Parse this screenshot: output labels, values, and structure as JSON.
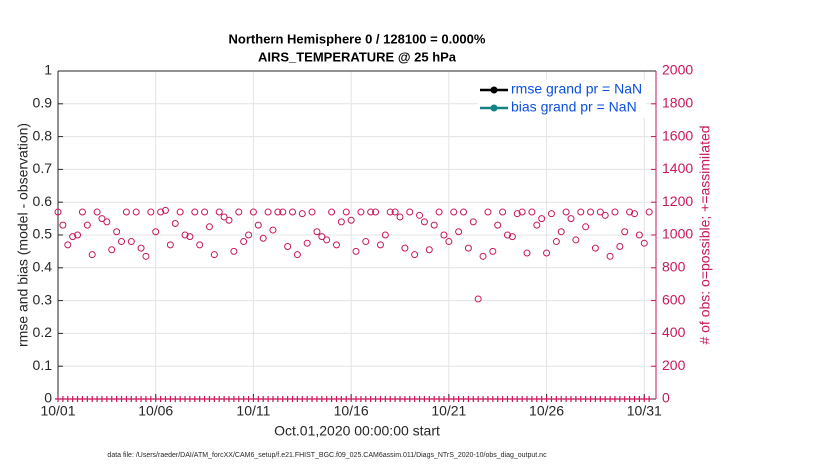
{
  "chart_data": {
    "type": "scatter",
    "title": "Northern Hemisphere 0 / 128100 = 0.000%",
    "subtitle": "AIRS_TEMPERATURE @ 25 hPa",
    "xlabel": "Oct.01,2020 00:00:00 start",
    "ylabel": "rmse and bias (model - observation)",
    "y2label": "# of obs: o=possible; +=assimilated",
    "footnote": "data file: /Users/raeder/DAI/ATM_forcXX/CAM6_setup/f.e21.FHIST_BGC.f09_025.CAM6assim.011/Diags_NTrS_2020-10/obs_diag_output.nc",
    "legend": [
      {
        "name": "rmse grand pr = NaN",
        "color": "#000000"
      },
      {
        "name": "bias grand pr = NaN",
        "color": "#138484"
      }
    ],
    "legend_text_color": "#0a50e0",
    "legend_corner": "upper right",
    "grid": true,
    "xlim": [
      0,
      30.6
    ],
    "xticks": [
      {
        "value": 0,
        "label": "10/01"
      },
      {
        "value": 5,
        "label": "10/06"
      },
      {
        "value": 10,
        "label": "10/11"
      },
      {
        "value": 15,
        "label": "10/16"
      },
      {
        "value": 20,
        "label": "10/21"
      },
      {
        "value": 25,
        "label": "10/26"
      },
      {
        "value": 30,
        "label": "10/31"
      }
    ],
    "ylim": [
      0,
      1
    ],
    "yticks": [
      0,
      0.1,
      0.2,
      0.3,
      0.4,
      0.5,
      0.6,
      0.7,
      0.8,
      0.9,
      1
    ],
    "y2lim": [
      0,
      2000
    ],
    "y2ticks": [
      0,
      200,
      400,
      600,
      800,
      1000,
      1200,
      1400,
      1600,
      1800,
      2000
    ],
    "y2color": "#c8175d",
    "x": [
      0,
      0.25,
      0.5,
      0.75,
      1,
      1.25,
      1.5,
      1.75,
      2,
      2.25,
      2.5,
      2.75,
      3,
      3.25,
      3.5,
      3.75,
      4,
      4.25,
      4.5,
      4.75,
      5,
      5.25,
      5.5,
      5.75,
      6,
      6.25,
      6.5,
      6.75,
      7,
      7.25,
      7.5,
      7.75,
      8,
      8.25,
      8.5,
      8.75,
      9,
      9.25,
      9.5,
      9.75,
      10,
      10.25,
      10.5,
      10.75,
      11,
      11.25,
      11.5,
      11.75,
      12,
      12.25,
      12.5,
      12.75,
      13,
      13.25,
      13.5,
      13.75,
      14,
      14.25,
      14.5,
      14.75,
      15,
      15.25,
      15.5,
      15.75,
      16,
      16.25,
      16.5,
      16.75,
      17,
      17.25,
      17.5,
      17.75,
      18,
      18.25,
      18.5,
      18.75,
      19,
      19.25,
      19.5,
      19.75,
      20,
      20.25,
      20.5,
      20.75,
      21,
      21.25,
      21.5,
      21.75,
      22,
      22.25,
      22.5,
      22.75,
      23,
      23.25,
      23.5,
      23.75,
      24,
      24.25,
      24.5,
      24.75,
      25,
      25.25,
      25.5,
      25.75,
      26,
      26.25,
      26.5,
      26.75,
      27,
      27.25,
      27.5,
      27.75,
      28,
      28.25,
      28.5,
      28.75,
      29,
      29.25,
      29.5,
      29.75,
      30,
      30.25
    ],
    "series": [
      {
        "marker": "circle",
        "color": "#c8175d",
        "axis": "y2",
        "values": [
          1140,
          1060,
          940,
          990,
          1000,
          1140,
          1060,
          880,
          1140,
          1100,
          1080,
          910,
          1020,
          960,
          1140,
          960,
          1140,
          920,
          870,
          1140,
          1020,
          1140,
          1150,
          940,
          1070,
          1140,
          1000,
          990,
          1140,
          940,
          1140,
          1050,
          880,
          1140,
          1110,
          1090,
          900,
          1140,
          960,
          1000,
          1140,
          1060,
          980,
          1140,
          1030,
          1140,
          1140,
          930,
          1140,
          880,
          1130,
          950,
          1140,
          1020,
          990,
          970,
          1140,
          940,
          1080,
          1140,
          1090,
          900,
          1140,
          960,
          1140,
          1140,
          940,
          1000,
          1140,
          1140,
          1110,
          920,
          1140,
          880,
          1120,
          1080,
          910,
          1060,
          1140,
          1000,
          960,
          1140,
          1020,
          1140,
          920,
          1080,
          610,
          870,
          1140,
          900,
          1060,
          1140,
          1000,
          990,
          1130,
          1140,
          890,
          1140,
          1060,
          1100,
          890,
          1130,
          960,
          1020,
          1140,
          1100,
          970,
          1140,
          1050,
          1140,
          920,
          1140,
          1120,
          870,
          1140,
          930,
          1020,
          1140,
          1130,
          1000,
          950,
          1140
        ]
      },
      {
        "marker": "plus",
        "color": "#c8175d",
        "axis": "y2",
        "values": [
          0,
          0,
          0,
          0,
          0,
          0,
          0,
          0,
          0,
          0,
          0,
          0,
          0,
          0,
          0,
          0,
          0,
          0,
          0,
          0,
          0,
          0,
          0,
          0,
          0,
          0,
          0,
          0,
          0,
          0,
          0,
          0,
          0,
          0,
          0,
          0,
          0,
          0,
          0,
          0,
          0,
          0,
          0,
          0,
          0,
          0,
          0,
          0,
          0,
          0,
          0,
          0,
          0,
          0,
          0,
          0,
          0,
          0,
          0,
          0,
          0,
          0,
          0,
          0,
          0,
          0,
          0,
          0,
          0,
          0,
          0,
          0,
          0,
          0,
          0,
          0,
          0,
          0,
          0,
          0,
          0,
          0,
          0,
          0,
          0,
          0,
          0,
          0,
          0,
          0,
          0,
          0,
          0,
          0,
          0,
          0,
          0,
          0,
          0,
          0,
          0,
          0,
          0,
          0,
          0,
          0,
          0,
          0,
          0,
          0,
          0,
          0,
          0,
          0,
          0,
          0,
          0,
          0,
          0,
          0,
          0,
          0
        ]
      }
    ]
  }
}
